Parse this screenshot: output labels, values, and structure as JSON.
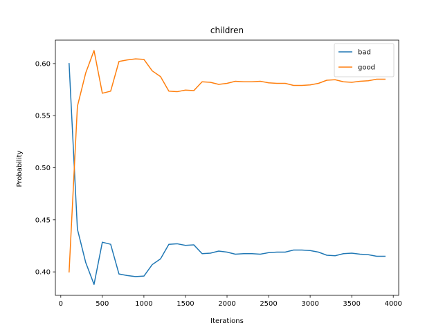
{
  "chart_data": {
    "type": "line",
    "title": "children",
    "xlabel": "Iterations",
    "ylabel": "Probability",
    "xlim": [
      -65,
      4065
    ],
    "ylim": [
      0.3775,
      0.6225
    ],
    "xticks": [
      0,
      500,
      1000,
      1500,
      2000,
      2500,
      3000,
      3500,
      4000
    ],
    "yticks": [
      0.4,
      0.45,
      0.5,
      0.55,
      0.6
    ],
    "ytick_labels": [
      "0.40",
      "0.45",
      "0.50",
      "0.55",
      "0.60"
    ],
    "grid": false,
    "legend_position": "top-right",
    "x": [
      100,
      200,
      300,
      400,
      500,
      600,
      700,
      800,
      900,
      1000,
      1100,
      1200,
      1300,
      1400,
      1500,
      1600,
      1700,
      1800,
      1900,
      2000,
      2100,
      2200,
      2300,
      2400,
      2500,
      2600,
      2700,
      2800,
      2900,
      3000,
      3100,
      3200,
      3300,
      3400,
      3500,
      3600,
      3700,
      3800,
      3900
    ],
    "series": [
      {
        "name": "bad",
        "color": "#1f77b4",
        "values": [
          0.6,
          0.441,
          0.409,
          0.388,
          0.4285,
          0.4265,
          0.398,
          0.3965,
          0.3955,
          0.396,
          0.407,
          0.4125,
          0.4265,
          0.427,
          0.4255,
          0.426,
          0.4175,
          0.418,
          0.42,
          0.419,
          0.417,
          0.4175,
          0.4175,
          0.417,
          0.4185,
          0.419,
          0.419,
          0.421,
          0.421,
          0.4205,
          0.419,
          0.416,
          0.4155,
          0.4175,
          0.418,
          0.417,
          0.4165,
          0.415,
          0.415
        ]
      },
      {
        "name": "good",
        "color": "#ff7f0e",
        "values": [
          0.4,
          0.559,
          0.591,
          0.6125,
          0.5715,
          0.5735,
          0.602,
          0.6035,
          0.6045,
          0.604,
          0.593,
          0.5875,
          0.5735,
          0.573,
          0.5745,
          0.574,
          0.5825,
          0.582,
          0.58,
          0.581,
          0.583,
          0.5825,
          0.5825,
          0.583,
          0.5815,
          0.581,
          0.581,
          0.579,
          0.579,
          0.5795,
          0.581,
          0.584,
          0.5845,
          0.5825,
          0.582,
          0.583,
          0.5835,
          0.585,
          0.585
        ]
      }
    ]
  }
}
